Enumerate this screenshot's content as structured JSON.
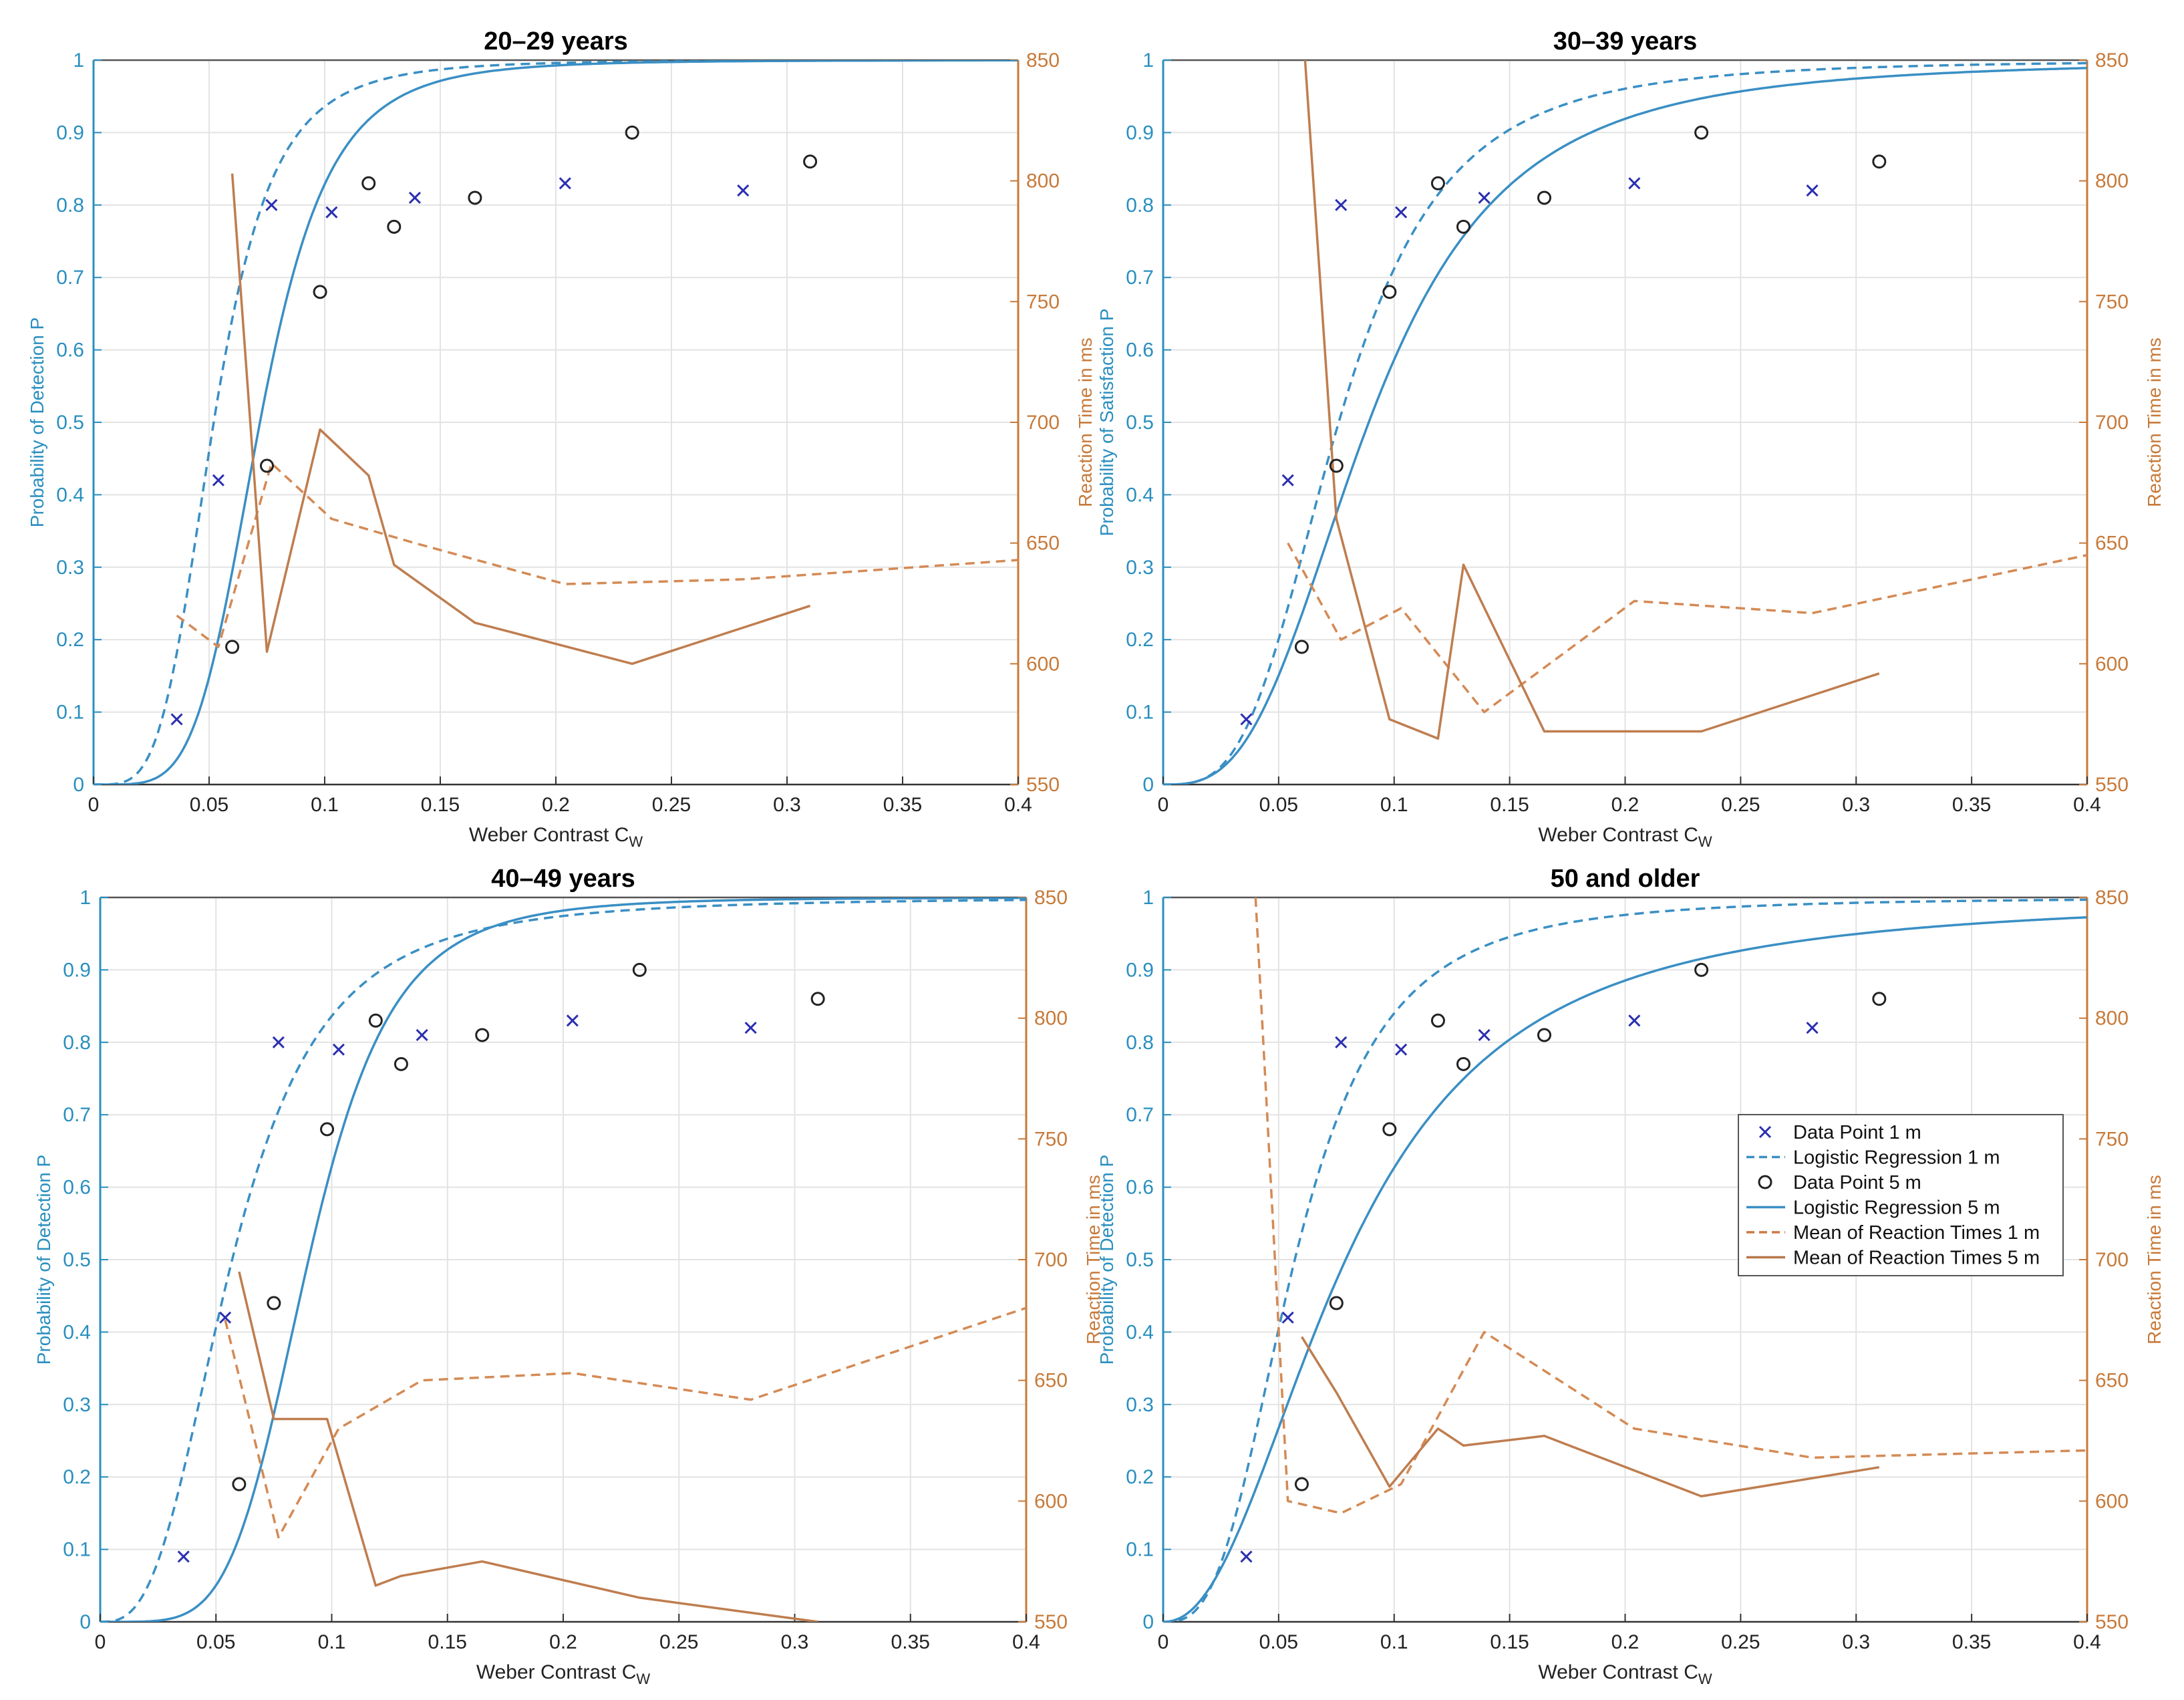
{
  "chart_data": [
    {
      "type": "line",
      "title": "20–29 years",
      "xlabel": "Weber Contrast C",
      "xlabel_sub": "W",
      "ylabel": "Probability of Detection P",
      "y2label": "Reaction Time in ms",
      "xlim": [
        0,
        0.4
      ],
      "ylim": [
        0,
        1
      ],
      "y2lim": [
        550,
        850
      ],
      "x_ticks": [
        "0",
        "0.05",
        "0.1",
        "0.15",
        "0.2",
        "0.25",
        "0.3",
        "0.35",
        "0.4"
      ],
      "y_ticks": [
        "0",
        "0.1",
        "0.2",
        "0.3",
        "0.4",
        "0.5",
        "0.6",
        "0.7",
        "0.8",
        "0.9",
        "1"
      ],
      "y2_ticks": [
        "550",
        "600",
        "650",
        "700",
        "750",
        "800",
        "850"
      ],
      "logistic": {
        "dashed_1m": {
          "k": 4.1,
          "a": 0.052
        },
        "solid_5m": {
          "k": 4.8,
          "a": 0.072
        }
      },
      "series": [
        {
          "name": "Data Point 1 m",
          "kind": "scatter",
          "marker": "x",
          "axis": "left",
          "x": [
            0.036,
            0.054,
            0.077,
            0.103,
            0.139,
            0.204,
            0.281
          ],
          "y": [
            0.09,
            0.42,
            0.8,
            0.79,
            0.81,
            0.83,
            0.82
          ]
        },
        {
          "name": "Data Point 5 m",
          "kind": "scatter",
          "marker": "o",
          "axis": "left",
          "x": [
            0.06,
            0.075,
            0.098,
            0.119,
            0.13,
            0.165,
            0.233,
            0.31
          ],
          "y": [
            0.19,
            0.44,
            0.68,
            0.83,
            0.77,
            0.81,
            0.9,
            0.86
          ]
        },
        {
          "name": "Mean of Reaction Times 1 m",
          "kind": "line",
          "dash": true,
          "axis": "right",
          "x": [
            0.036,
            0.054,
            0.077,
            0.103,
            0.139,
            0.204,
            0.281,
            0.4
          ],
          "y": [
            620,
            607,
            683,
            660,
            650,
            633,
            635,
            643
          ]
        },
        {
          "name": "Mean of Reaction Times 5 m",
          "kind": "line",
          "dash": false,
          "axis": "right",
          "x": [
            0.06,
            0.075,
            0.098,
            0.119,
            0.13,
            0.165,
            0.233,
            0.31
          ],
          "y": [
            803,
            605,
            697,
            678,
            641,
            617,
            600,
            624
          ]
        }
      ]
    },
    {
      "type": "line",
      "title": "30–39 years",
      "xlabel": "Weber Contrast C",
      "xlabel_sub": "W",
      "ylabel": "Probability of Satisfaction P",
      "y2label": "Reaction Time in ms",
      "xlim": [
        0,
        0.4
      ],
      "ylim": [
        0,
        1
      ],
      "y2lim": [
        550,
        850
      ],
      "x_ticks": [
        "0",
        "0.05",
        "0.1",
        "0.15",
        "0.2",
        "0.25",
        "0.3",
        "0.35",
        "0.4"
      ],
      "y_ticks": [
        "0",
        "0.1",
        "0.2",
        "0.3",
        "0.4",
        "0.5",
        "0.6",
        "0.7",
        "0.8",
        "0.9",
        "1"
      ],
      "y2_ticks": [
        "550",
        "600",
        "650",
        "700",
        "750",
        "800",
        "850"
      ],
      "logistic": {
        "dashed_1m": {
          "k": 3.3,
          "a": 0.076
        },
        "solid_5m": {
          "k": 3.0,
          "a": 0.089
        }
      },
      "series": [
        {
          "name": "Data Point 1 m",
          "kind": "scatter",
          "marker": "x",
          "axis": "left",
          "x": [
            0.036,
            0.054,
            0.077,
            0.103,
            0.139,
            0.204,
            0.281
          ],
          "y": [
            0.09,
            0.42,
            0.8,
            0.79,
            0.81,
            0.83,
            0.82
          ]
        },
        {
          "name": "Data Point 5 m",
          "kind": "scatter",
          "marker": "o",
          "axis": "left",
          "x": [
            0.06,
            0.075,
            0.098,
            0.119,
            0.13,
            0.165,
            0.233,
            0.31
          ],
          "y": [
            0.19,
            0.44,
            0.68,
            0.83,
            0.77,
            0.81,
            0.9,
            0.86
          ]
        },
        {
          "name": "Mean of Reaction Times 1 m",
          "kind": "line",
          "dash": true,
          "axis": "right",
          "x": [
            0.054,
            0.077,
            0.103,
            0.139,
            0.204,
            0.281,
            0.4
          ],
          "y": [
            650,
            610,
            623,
            580,
            626,
            621,
            645
          ]
        },
        {
          "name": "Mean of Reaction Times 5 m",
          "kind": "line",
          "dash": false,
          "axis": "right",
          "x": [
            0.06,
            0.075,
            0.098,
            0.119,
            0.13,
            0.165,
            0.233,
            0.31
          ],
          "y": [
            870,
            660,
            577,
            569,
            641,
            572,
            572,
            596
          ]
        }
      ]
    },
    {
      "type": "line",
      "title": "40–49 years",
      "xlabel": "Weber Contrast C",
      "xlabel_sub": "W",
      "ylabel": "Probability of Detection P",
      "y2label": "Reaction Time in ms",
      "xlim": [
        0,
        0.4
      ],
      "ylim": [
        0,
        1
      ],
      "y2lim": [
        550,
        850
      ],
      "x_ticks": [
        "0",
        "0.05",
        "0.1",
        "0.15",
        "0.2",
        "0.25",
        "0.3",
        "0.35",
        "0.4"
      ],
      "y_ticks": [
        "0",
        "0.1",
        "0.2",
        "0.3",
        "0.4",
        "0.5",
        "0.6",
        "0.7",
        "0.8",
        "0.9",
        "1"
      ],
      "y2_ticks": [
        "550",
        "600",
        "650",
        "700",
        "750",
        "800",
        "850"
      ],
      "logistic": {
        "dashed_1m": {
          "k": 2.9,
          "a": 0.057
        },
        "solid_5m": {
          "k": 5.0,
          "a": 0.09
        }
      },
      "series": [
        {
          "name": "Data Point 1 m",
          "kind": "scatter",
          "marker": "x",
          "axis": "left",
          "x": [
            0.036,
            0.054,
            0.077,
            0.103,
            0.139,
            0.204,
            0.281
          ],
          "y": [
            0.09,
            0.42,
            0.8,
            0.79,
            0.81,
            0.83,
            0.82
          ]
        },
        {
          "name": "Data Point 5 m",
          "kind": "scatter",
          "marker": "o",
          "axis": "left",
          "x": [
            0.06,
            0.075,
            0.098,
            0.119,
            0.13,
            0.165,
            0.233,
            0.31
          ],
          "y": [
            0.19,
            0.44,
            0.68,
            0.83,
            0.77,
            0.81,
            0.9,
            0.86
          ]
        },
        {
          "name": "Mean of Reaction Times 1 m",
          "kind": "line",
          "dash": true,
          "axis": "right",
          "x": [
            0.054,
            0.077,
            0.103,
            0.139,
            0.204,
            0.281,
            0.4
          ],
          "y": [
            675,
            585,
            630,
            650,
            653,
            642,
            680
          ]
        },
        {
          "name": "Mean of Reaction Times 5 m",
          "kind": "line",
          "dash": false,
          "axis": "right",
          "x": [
            0.06,
            0.075,
            0.098,
            0.119,
            0.13,
            0.165,
            0.233,
            0.31
          ],
          "y": [
            695,
            634,
            634,
            565,
            569,
            575,
            560,
            550
          ]
        }
      ]
    },
    {
      "type": "line",
      "title": "50 and older",
      "xlabel": "Weber Contrast C",
      "xlabel_sub": "W",
      "ylabel": "Probability of Detection P",
      "y2label": "Reaction Time in ms",
      "xlim": [
        0,
        0.4
      ],
      "ylim": [
        0,
        1
      ],
      "y2lim": [
        550,
        850
      ],
      "x_ticks": [
        "0",
        "0.05",
        "0.1",
        "0.15",
        "0.2",
        "0.25",
        "0.3",
        "0.35",
        "0.4"
      ],
      "y_ticks": [
        "0",
        "0.1",
        "0.2",
        "0.3",
        "0.4",
        "0.5",
        "0.6",
        "0.7",
        "0.8",
        "0.9",
        "1"
      ],
      "y2_ticks": [
        "550",
        "600",
        "650",
        "700",
        "750",
        "800",
        "850"
      ],
      "logistic": {
        "dashed_1m": {
          "k": 2.95,
          "a": 0.057
        },
        "solid_5m": {
          "k": 2.2,
          "a": 0.079
        }
      },
      "series": [
        {
          "name": "Data Point 1 m",
          "kind": "scatter",
          "marker": "x",
          "axis": "left",
          "x": [
            0.036,
            0.054,
            0.077,
            0.103,
            0.139,
            0.204,
            0.281
          ],
          "y": [
            0.09,
            0.42,
            0.8,
            0.79,
            0.81,
            0.83,
            0.82
          ]
        },
        {
          "name": "Data Point 5 m",
          "kind": "scatter",
          "marker": "o",
          "axis": "left",
          "x": [
            0.06,
            0.075,
            0.098,
            0.119,
            0.13,
            0.165,
            0.233,
            0.31
          ],
          "y": [
            0.19,
            0.44,
            0.68,
            0.83,
            0.77,
            0.81,
            0.9,
            0.86
          ]
        },
        {
          "name": "Mean of Reaction Times 1 m",
          "kind": "line",
          "dash": true,
          "axis": "right",
          "x": [
            0.04,
            0.054,
            0.077,
            0.103,
            0.139,
            0.204,
            0.281,
            0.4
          ],
          "y": [
            850,
            600,
            595,
            607,
            670,
            630,
            618,
            621
          ]
        },
        {
          "name": "Mean of Reaction Times 5 m",
          "kind": "line",
          "dash": false,
          "axis": "right",
          "x": [
            0.06,
            0.075,
            0.098,
            0.119,
            0.13,
            0.165,
            0.233,
            0.31
          ],
          "y": [
            668,
            645,
            606,
            630,
            623,
            627,
            602,
            614
          ]
        }
      ]
    }
  ],
  "legend": {
    "position": "inside-right",
    "panel": 3,
    "items": [
      {
        "label": "Data Point 1 m",
        "marker": "x",
        "color": "#2b2fb0"
      },
      {
        "label": "Logistic Regression 1 m",
        "line": "dashed",
        "color": "#3a8fc4"
      },
      {
        "label": "Data Point 5 m",
        "marker": "o",
        "color": "#222222"
      },
      {
        "label": "Logistic Regression 5 m",
        "line": "solid",
        "color": "#3a8fc4"
      },
      {
        "label": "Mean of Reaction Times 1 m",
        "line": "dashed",
        "color": "#cc7a44"
      },
      {
        "label": "Mean of Reaction Times 5 m",
        "line": "solid",
        "color": "#b8764a"
      }
    ]
  },
  "colors": {
    "left_axis": "#2a8fbf",
    "right_axis": "#c77a3a",
    "logistic": "#3a8fc4",
    "rt_dashed": "#d48a55",
    "rt_solid": "#bf7d4f",
    "cross": "#2b2fb0",
    "circle": "#222222",
    "grid": "#e3e3e3"
  }
}
